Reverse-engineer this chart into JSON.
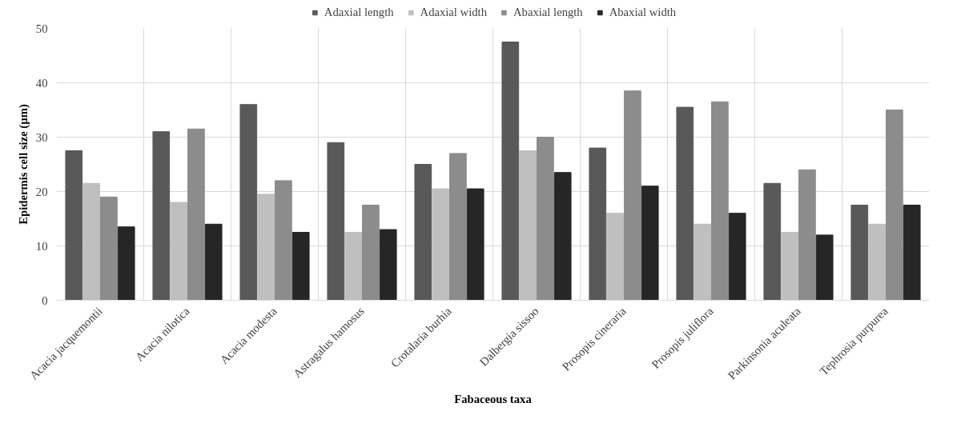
{
  "chart_data": {
    "type": "bar",
    "xlabel": "Fabaceous taxa",
    "ylabel": "Epidermis cell size (µm)",
    "categories": [
      "Acacia jacquemontii",
      "Acacia nilotica",
      "Acacia modesta",
      "Astragalus hamosus",
      "Crotalaria burhia",
      "Dalbergia sissoo",
      "Prosopis cineraria",
      "Prosopis juliflora",
      "Parkinsonia aculeata",
      "Tephrosia purpurea"
    ],
    "series": [
      {
        "name": "Adaxial length",
        "color": "#595959",
        "values": [
          27.5,
          31,
          36,
          29,
          25,
          47.5,
          28,
          35.5,
          21.5,
          17.5
        ]
      },
      {
        "name": "Adaxial width",
        "color": "#bfbfbf",
        "values": [
          21.5,
          18,
          19.5,
          12.5,
          20.5,
          27.5,
          16,
          14,
          12.5,
          14
        ]
      },
      {
        "name": "Abaxial length",
        "color": "#8c8c8c",
        "values": [
          19,
          31.5,
          22,
          17.5,
          27,
          30,
          38.5,
          36.5,
          24,
          35
        ]
      },
      {
        "name": "Abaxial width",
        "color": "#262626",
        "values": [
          13.5,
          14,
          12.5,
          13,
          20.5,
          23.5,
          21,
          16,
          12,
          17.5
        ]
      }
    ],
    "ylim": [
      0,
      50
    ],
    "yticks": [
      0,
      10,
      20,
      30,
      40,
      50
    ],
    "grid": true,
    "legend": "top"
  }
}
